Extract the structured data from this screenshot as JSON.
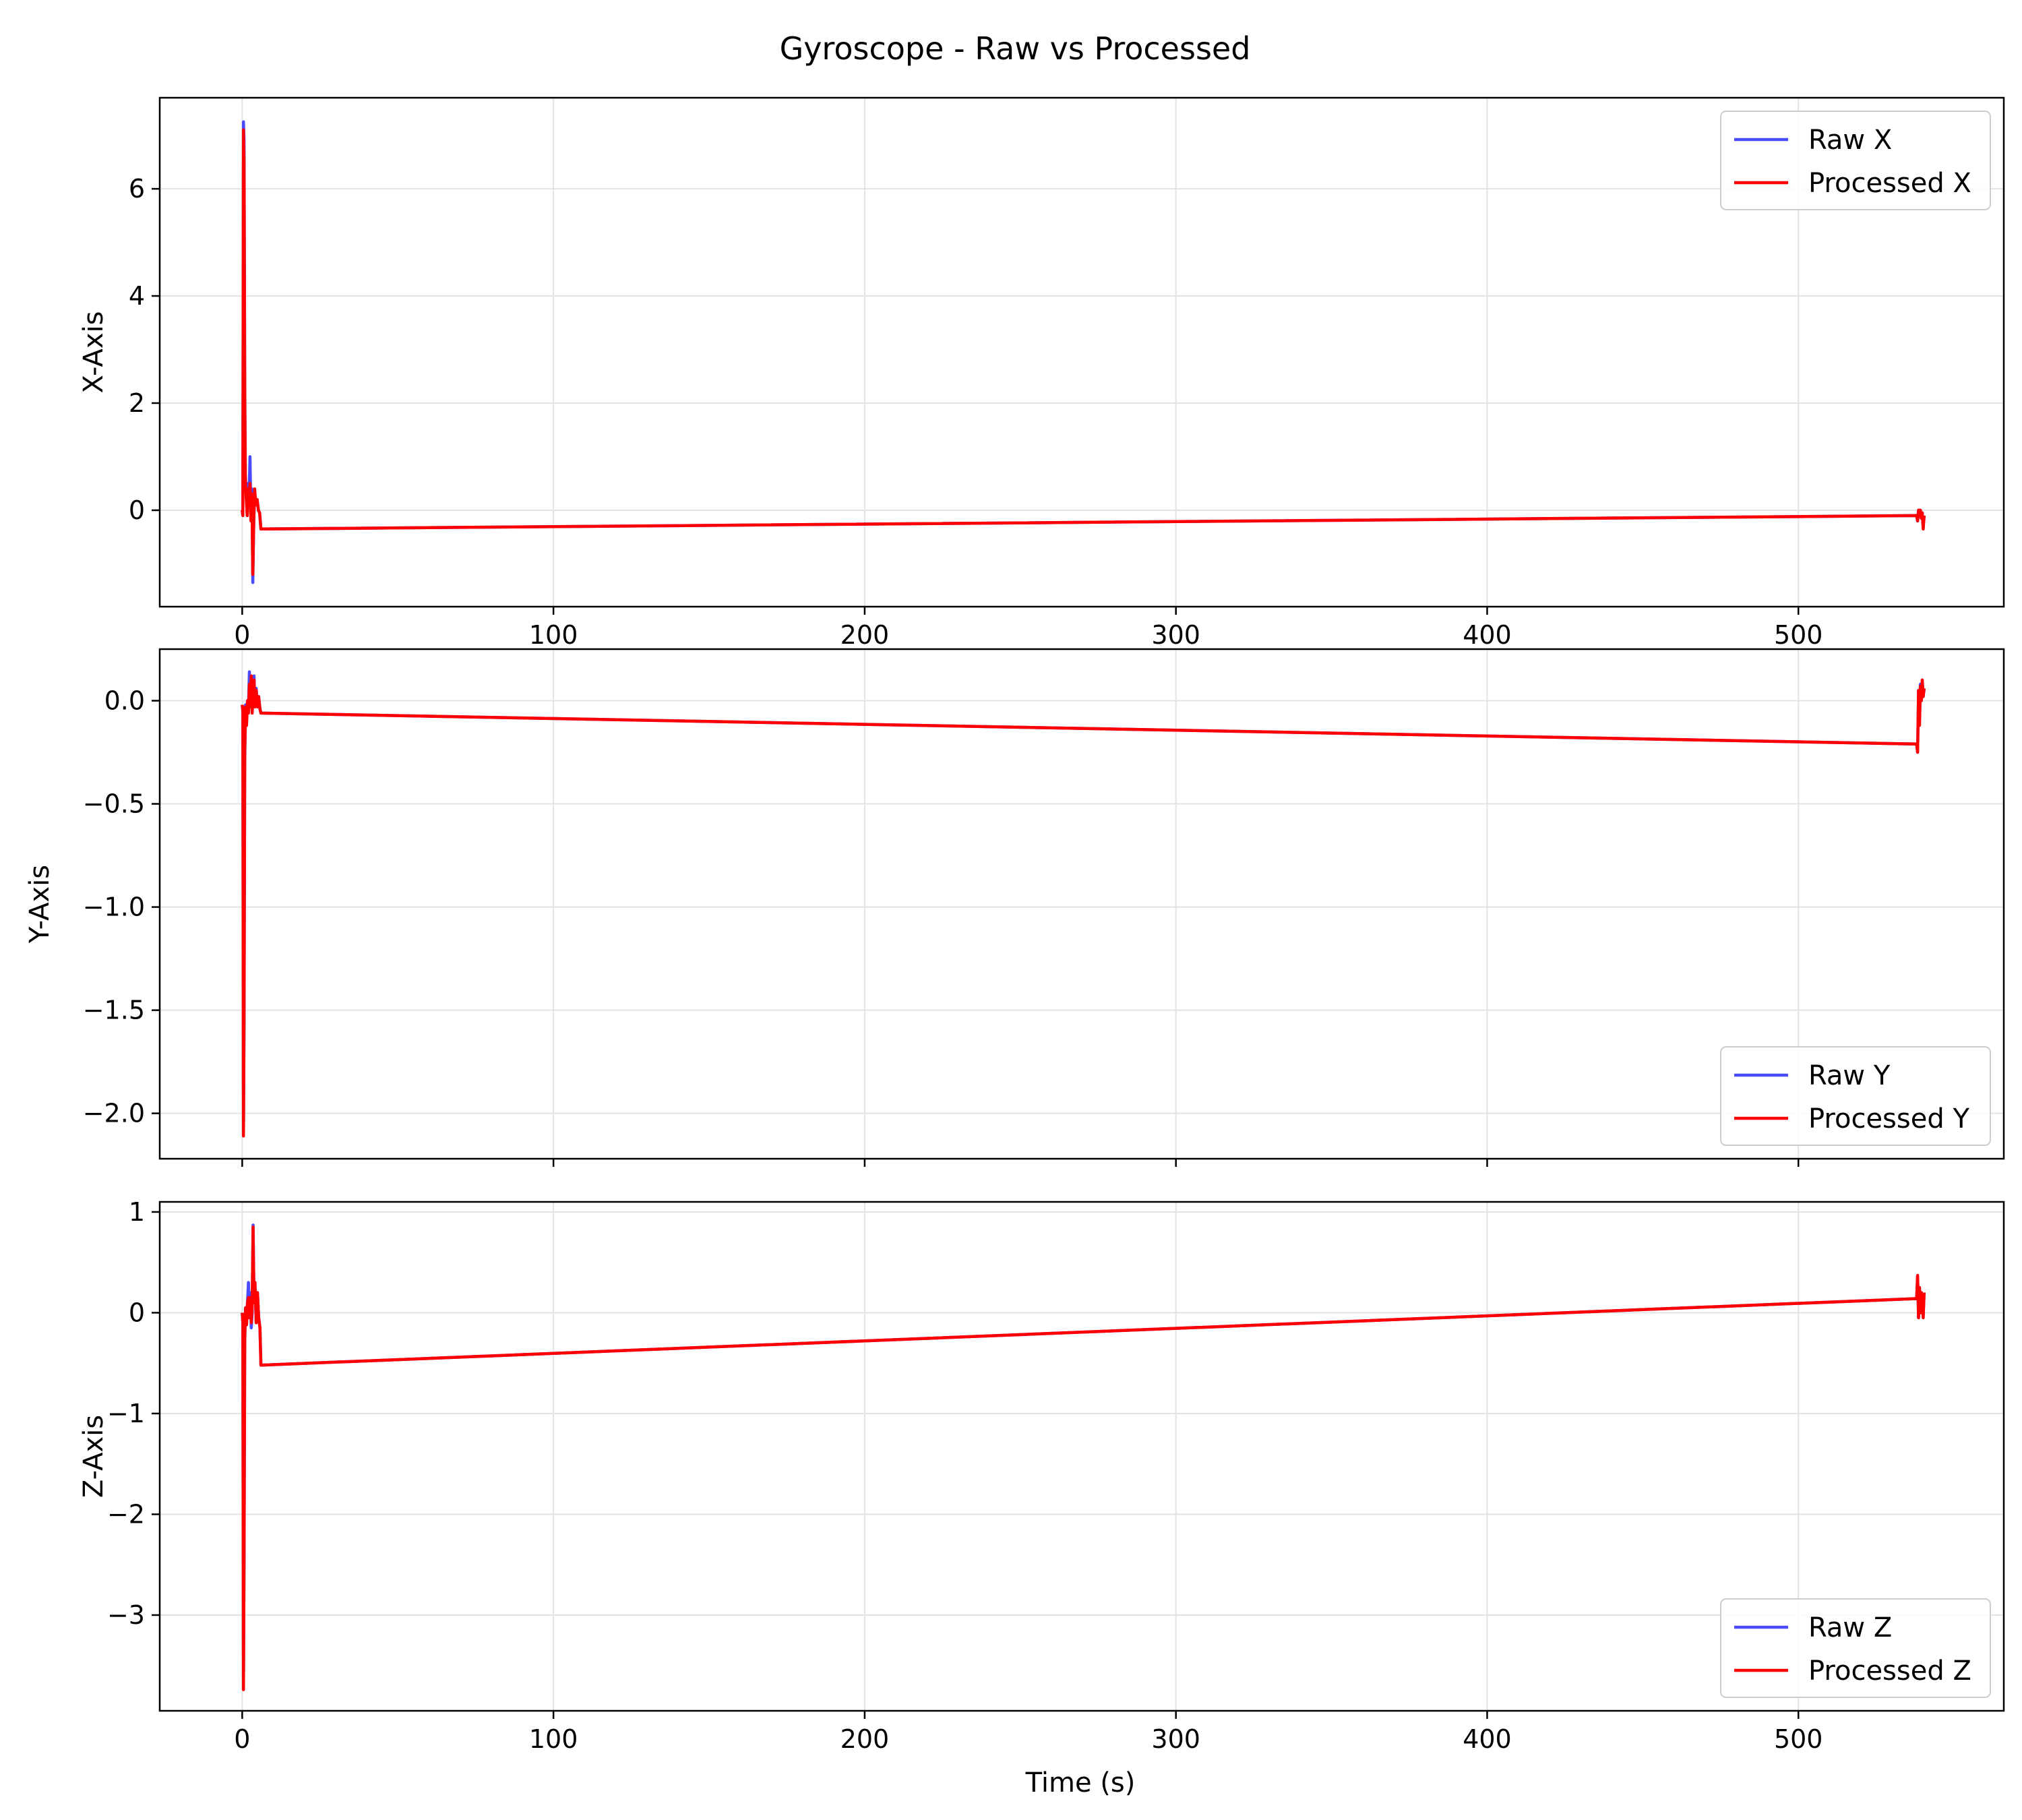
{
  "figure": {
    "title": "Gyroscope - Raw vs Processed",
    "xlabel": "Time (s)"
  },
  "colors": {
    "raw": "#4a4aff",
    "processed": "#ff0000",
    "grid": "#e3e3e3",
    "axes": "#000000"
  },
  "chart_data": [
    {
      "type": "line",
      "ylabel": "X-Axis",
      "xlim": [
        -26.5,
        566
      ],
      "ylim": [
        -1.8,
        7.7
      ],
      "xticks": [
        0,
        100,
        200,
        300,
        400,
        500
      ],
      "xtick_labels": [
        "0",
        "100",
        "200",
        "300",
        "400",
        "500"
      ],
      "yticks": [
        0,
        2,
        4,
        6
      ],
      "ytick_labels": [
        "0",
        "2",
        "4",
        "6"
      ],
      "grid": true,
      "legend_position": "upper right",
      "series": [
        {
          "name": "Raw X",
          "role": "raw",
          "x": [
            0,
            0.2,
            0.4,
            0.6,
            0.8,
            1.0,
            1.3,
            1.6,
            1.9,
            2.2,
            2.5,
            2.8,
            3.1,
            3.4,
            3.7,
            4.0,
            4.4,
            4.8,
            5.2,
            5.6,
            6,
            538,
            538.3,
            538.6,
            538.9,
            539.2,
            539.5,
            539.8,
            540.1,
            540.4
          ],
          "y": [
            0.0,
            -0.1,
            7.25,
            6.9,
            2.5,
            0.7,
            0.3,
            -0.1,
            0.5,
            0.2,
            1.0,
            -0.1,
            0.4,
            -1.35,
            -0.2,
            0.3,
            0.1,
            0.2,
            0.0,
            -0.05,
            -0.35,
            -0.1,
            -0.2,
            0.0,
            -0.1,
            0.0,
            -0.15,
            -0.05,
            -0.3,
            -0.1
          ]
        },
        {
          "name": "Processed X",
          "role": "processed",
          "x": [
            0,
            0.2,
            0.4,
            0.6,
            0.8,
            1.0,
            1.3,
            1.6,
            1.9,
            2.2,
            2.5,
            2.8,
            3.1,
            3.4,
            3.7,
            4.0,
            4.4,
            4.8,
            5.2,
            5.6,
            6,
            538,
            538.3,
            538.6,
            538.9,
            539.2,
            539.5,
            539.8,
            540.1,
            540.4
          ],
          "y": [
            0.0,
            -0.1,
            7.1,
            6.5,
            2.2,
            0.6,
            0.2,
            -0.1,
            0.4,
            0.1,
            0.5,
            -0.2,
            0.3,
            -1.2,
            -0.2,
            0.4,
            0.1,
            0.2,
            0.0,
            -0.05,
            -0.35,
            -0.1,
            -0.2,
            0.0,
            -0.1,
            0.0,
            -0.15,
            -0.05,
            -0.35,
            -0.1
          ]
        }
      ]
    },
    {
      "type": "line",
      "ylabel": "Y-Axis",
      "xlim": [
        -26.5,
        566
      ],
      "ylim": [
        -2.22,
        0.25
      ],
      "xticks": [
        0,
        100,
        200,
        300,
        400,
        500
      ],
      "xtick_labels": [
        "",
        "",
        "",
        "",
        "",
        ""
      ],
      "yticks": [
        0.0,
        -0.5,
        -1.0,
        -1.5,
        -2.0
      ],
      "ytick_labels": [
        "0.0",
        "−0.5",
        "−1.0",
        "−1.5",
        "−2.0"
      ],
      "grid": true,
      "legend_position": "lower right",
      "series": [
        {
          "name": "Raw Y",
          "role": "raw",
          "x": [
            0,
            0.2,
            0.4,
            0.6,
            0.8,
            1.1,
            1.4,
            1.7,
            2.0,
            2.3,
            2.6,
            2.9,
            3.2,
            3.5,
            3.8,
            4.1,
            4.5,
            4.9,
            5.3,
            5.7,
            6,
            538,
            538.3,
            538.6,
            538.9,
            539.2,
            539.5,
            539.8,
            540.1,
            540.4
          ],
          "y": [
            -0.02,
            -0.05,
            -2.1,
            -1.6,
            -0.3,
            -0.02,
            -0.1,
            0.0,
            -0.05,
            0.14,
            -0.02,
            0.1,
            -0.05,
            0.05,
            0.12,
            -0.02,
            0.06,
            -0.03,
            0.02,
            -0.04,
            -0.06,
            -0.21,
            -0.25,
            0.05,
            -0.1,
            0.08,
            0.0,
            0.1,
            0.02,
            0.06
          ]
        },
        {
          "name": "Processed Y",
          "role": "processed",
          "x": [
            0,
            0.2,
            0.4,
            0.6,
            0.8,
            1.1,
            1.4,
            1.7,
            2.0,
            2.3,
            2.6,
            2.9,
            3.2,
            3.5,
            3.8,
            4.1,
            4.5,
            4.9,
            5.3,
            5.7,
            6,
            538,
            538.3,
            538.6,
            538.9,
            539.2,
            539.5,
            539.8,
            540.1,
            540.4
          ],
          "y": [
            -0.02,
            -0.05,
            -2.11,
            -1.5,
            -0.25,
            -0.03,
            -0.12,
            0.0,
            -0.06,
            0.08,
            -0.03,
            0.12,
            -0.06,
            0.04,
            0.1,
            -0.03,
            0.05,
            -0.03,
            0.02,
            -0.04,
            -0.06,
            -0.21,
            -0.25,
            0.05,
            -0.12,
            0.07,
            0.0,
            0.1,
            0.02,
            0.06
          ]
        }
      ]
    },
    {
      "type": "line",
      "ylabel": "Z-Axis",
      "xlim": [
        -26.5,
        566
      ],
      "ylim": [
        -3.95,
        1.1
      ],
      "xticks": [
        0,
        100,
        200,
        300,
        400,
        500
      ],
      "xtick_labels": [
        "0",
        "100",
        "200",
        "300",
        "400",
        "500"
      ],
      "yticks": [
        1,
        0,
        -1,
        -2,
        -3
      ],
      "ytick_labels": [
        "1",
        "0",
        "−1",
        "−2",
        "−3"
      ],
      "grid": true,
      "legend_position": "lower right",
      "series": [
        {
          "name": "Raw Z",
          "role": "raw",
          "x": [
            0,
            0.2,
            0.4,
            0.6,
            0.8,
            1.1,
            1.4,
            1.7,
            2.0,
            2.3,
            2.6,
            2.9,
            3.2,
            3.5,
            3.8,
            4.1,
            4.5,
            4.9,
            5.3,
            5.7,
            6,
            538,
            538.3,
            538.6,
            538.9,
            539.2,
            539.5,
            539.8,
            540.1,
            540.4
          ],
          "y": [
            0.0,
            -0.1,
            -3.72,
            -2.5,
            -0.3,
            0.05,
            -0.1,
            0.1,
            0.3,
            -0.05,
            0.2,
            -0.15,
            0.0,
            0.87,
            0.1,
            0.3,
            -0.1,
            0.2,
            -0.05,
            -0.15,
            -0.52,
            0.14,
            0.35,
            -0.05,
            0.25,
            0.0,
            0.2,
            0.1,
            -0.02,
            0.2
          ]
        },
        {
          "name": "Processed Z",
          "role": "processed",
          "x": [
            0,
            0.2,
            0.4,
            0.6,
            0.8,
            1.1,
            1.4,
            1.7,
            2.0,
            2.3,
            2.6,
            2.9,
            3.2,
            3.5,
            3.8,
            4.1,
            4.5,
            4.9,
            5.3,
            5.7,
            6,
            538,
            538.3,
            538.6,
            538.9,
            539.2,
            539.5,
            539.8,
            540.1,
            540.4
          ],
          "y": [
            0.0,
            -0.1,
            -3.74,
            -2.4,
            -0.25,
            0.05,
            -0.12,
            0.1,
            0.15,
            -0.05,
            0.15,
            -0.1,
            0.05,
            0.85,
            0.1,
            0.3,
            -0.1,
            0.2,
            -0.05,
            -0.15,
            -0.52,
            0.14,
            0.37,
            -0.05,
            0.25,
            0.0,
            0.2,
            0.1,
            -0.05,
            0.2
          ]
        }
      ]
    }
  ]
}
